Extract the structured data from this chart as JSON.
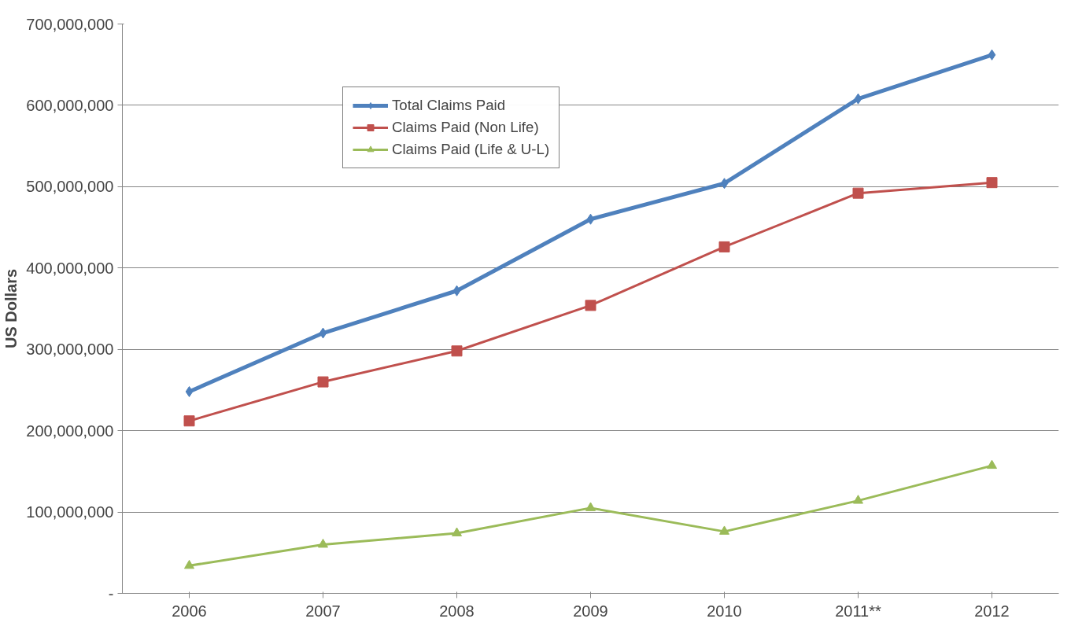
{
  "chart_data": {
    "type": "line",
    "ylabel": "US Dollars",
    "categories": [
      "2006",
      "2007",
      "2008",
      "2009",
      "2010",
      "2011**",
      "2012"
    ],
    "ylim": [
      0,
      700000000
    ],
    "yticks": [
      {
        "value": 0,
        "label": "-"
      },
      {
        "value": 100000000,
        "label": "100,000,000"
      },
      {
        "value": 200000000,
        "label": "200,000,000"
      },
      {
        "value": 300000000,
        "label": "300,000,000"
      },
      {
        "value": 400000000,
        "label": "400,000,000"
      },
      {
        "value": 500000000,
        "label": "500,000,000"
      },
      {
        "value": 600000000,
        "label": "600,000,000"
      },
      {
        "value": 700000000,
        "label": "700,000,000"
      }
    ],
    "grid": "y",
    "legend": "top left",
    "series": [
      {
        "name": "Total Claims Paid",
        "color": "#4f81bd",
        "marker": "diamond",
        "values": [
          248000000,
          320000000,
          372000000,
          460000000,
          504000000,
          608000000,
          662000000
        ]
      },
      {
        "name": "Claims Paid (Non Life)",
        "color": "#c0504d",
        "marker": "square",
        "values": [
          212000000,
          260000000,
          298000000,
          354000000,
          426000000,
          492000000,
          505000000
        ]
      },
      {
        "name": "Claims Paid (Life & U-L)",
        "color": "#9bbb59",
        "marker": "triangle",
        "values": [
          34000000,
          60000000,
          74000000,
          105000000,
          76000000,
          114000000,
          157000000
        ]
      }
    ]
  }
}
